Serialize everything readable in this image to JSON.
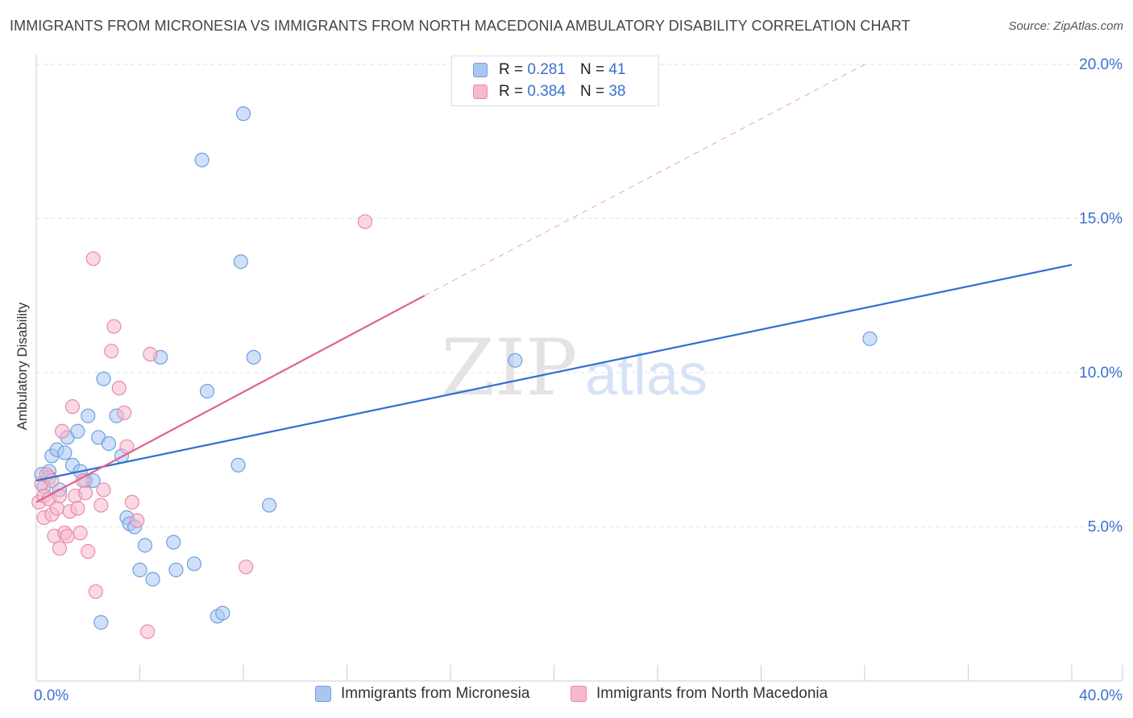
{
  "header": {
    "title": "IMMIGRANTS FROM MICRONESIA VS IMMIGRANTS FROM NORTH MACEDONIA AMBULATORY DISABILITY CORRELATION CHART",
    "source": "Source: ZipAtlas.com"
  },
  "watermark": {
    "zip": "ZIP",
    "atlas": "atlas"
  },
  "legend": {
    "items": [
      {
        "r_label": "R =",
        "r_value": "0.281",
        "n_label": "N =",
        "n_value": "41",
        "color": "#a9c6f2"
      },
      {
        "r_label": "R =",
        "r_value": "0.384",
        "n_label": "N =",
        "n_value": "38",
        "color": "#f6b8cc"
      }
    ]
  },
  "colors": {
    "blue_fill": "#a9c6f2",
    "blue_stroke": "#6f9ee0",
    "blue_line": "#2f6fd0",
    "pink_fill": "#f6b8cc",
    "pink_stroke": "#e98aa9",
    "pink_line": "#e0628f",
    "tick_label": "#3b6fd1",
    "grid": "#e2e2e2"
  },
  "chart_data": {
    "type": "scatter",
    "title": "IMMIGRANTS FROM MICRONESIA VS IMMIGRANTS FROM NORTH MACEDONIA AMBULATORY DISABILITY CORRELATION CHART",
    "xlabel": "",
    "ylabel": "Ambulatory Disability",
    "xlim": [
      0,
      40
    ],
    "ylim": [
      0,
      20
    ],
    "x_tick_labels": [
      "0.0%",
      "40.0%"
    ],
    "y_ticks": [
      5,
      10,
      15,
      20
    ],
    "y_tick_labels": [
      "5.0%",
      "10.0%",
      "15.0%",
      "20.0%"
    ],
    "grid": true,
    "legend_position": "top-center",
    "series": [
      {
        "name": "Immigrants from Micronesia",
        "color": "#a9c6f2",
        "points": [
          {
            "x": 0.2,
            "y": 6.7
          },
          {
            "x": 0.3,
            "y": 6.3
          },
          {
            "x": 0.5,
            "y": 6.8
          },
          {
            "x": 0.5,
            "y": 6.6
          },
          {
            "x": 0.6,
            "y": 7.3
          },
          {
            "x": 0.8,
            "y": 7.5
          },
          {
            "x": 0.9,
            "y": 6.2
          },
          {
            "x": 1.1,
            "y": 7.4
          },
          {
            "x": 1.2,
            "y": 7.9
          },
          {
            "x": 1.4,
            "y": 7.0
          },
          {
            "x": 1.6,
            "y": 8.1
          },
          {
            "x": 1.7,
            "y": 6.8
          },
          {
            "x": 1.9,
            "y": 6.5
          },
          {
            "x": 2.0,
            "y": 8.6
          },
          {
            "x": 2.2,
            "y": 6.5
          },
          {
            "x": 2.4,
            "y": 7.9
          },
          {
            "x": 2.6,
            "y": 9.8
          },
          {
            "x": 2.8,
            "y": 7.7
          },
          {
            "x": 3.1,
            "y": 8.6
          },
          {
            "x": 3.3,
            "y": 7.3
          },
          {
            "x": 3.5,
            "y": 5.3
          },
          {
            "x": 3.6,
            "y": 5.1
          },
          {
            "x": 3.8,
            "y": 5.0
          },
          {
            "x": 4.0,
            "y": 3.6
          },
          {
            "x": 4.2,
            "y": 4.4
          },
          {
            "x": 4.5,
            "y": 3.3
          },
          {
            "x": 4.8,
            "y": 10.5
          },
          {
            "x": 5.3,
            "y": 4.5
          },
          {
            "x": 5.4,
            "y": 3.6
          },
          {
            "x": 6.1,
            "y": 3.8
          },
          {
            "x": 6.4,
            "y": 16.9
          },
          {
            "x": 6.6,
            "y": 9.4
          },
          {
            "x": 7.0,
            "y": 2.1
          },
          {
            "x": 7.2,
            "y": 2.2
          },
          {
            "x": 7.8,
            "y": 7.0
          },
          {
            "x": 7.9,
            "y": 13.6
          },
          {
            "x": 8.0,
            "y": 18.4
          },
          {
            "x": 8.4,
            "y": 10.5
          },
          {
            "x": 9.0,
            "y": 5.7
          },
          {
            "x": 2.5,
            "y": 1.9
          },
          {
            "x": 18.5,
            "y": 10.4
          },
          {
            "x": 32.2,
            "y": 11.1
          }
        ]
      },
      {
        "name": "Immigrants from North Macedonia",
        "color": "#f6b8cc",
        "points": [
          {
            "x": 0.1,
            "y": 5.8
          },
          {
            "x": 0.2,
            "y": 6.4
          },
          {
            "x": 0.3,
            "y": 6.0
          },
          {
            "x": 0.3,
            "y": 5.3
          },
          {
            "x": 0.4,
            "y": 6.7
          },
          {
            "x": 0.5,
            "y": 5.9
          },
          {
            "x": 0.6,
            "y": 5.4
          },
          {
            "x": 0.6,
            "y": 6.5
          },
          {
            "x": 0.7,
            "y": 4.7
          },
          {
            "x": 0.8,
            "y": 5.6
          },
          {
            "x": 0.9,
            "y": 4.3
          },
          {
            "x": 0.9,
            "y": 6.0
          },
          {
            "x": 1.0,
            "y": 8.1
          },
          {
            "x": 1.1,
            "y": 4.8
          },
          {
            "x": 1.2,
            "y": 4.7
          },
          {
            "x": 1.3,
            "y": 5.5
          },
          {
            "x": 1.4,
            "y": 8.9
          },
          {
            "x": 1.5,
            "y": 6.0
          },
          {
            "x": 1.6,
            "y": 5.6
          },
          {
            "x": 1.7,
            "y": 4.8
          },
          {
            "x": 1.8,
            "y": 6.5
          },
          {
            "x": 1.9,
            "y": 6.1
          },
          {
            "x": 2.0,
            "y": 4.2
          },
          {
            "x": 2.2,
            "y": 13.7
          },
          {
            "x": 2.3,
            "y": 2.9
          },
          {
            "x": 2.5,
            "y": 5.7
          },
          {
            "x": 2.6,
            "y": 6.2
          },
          {
            "x": 2.9,
            "y": 10.7
          },
          {
            "x": 3.0,
            "y": 11.5
          },
          {
            "x": 3.2,
            "y": 9.5
          },
          {
            "x": 3.4,
            "y": 8.7
          },
          {
            "x": 3.5,
            "y": 7.6
          },
          {
            "x": 3.7,
            "y": 5.8
          },
          {
            "x": 4.3,
            "y": 1.6
          },
          {
            "x": 4.4,
            "y": 10.6
          },
          {
            "x": 8.1,
            "y": 3.7
          },
          {
            "x": 12.7,
            "y": 14.9
          },
          {
            "x": 3.9,
            "y": 5.2
          }
        ]
      }
    ],
    "trend_lines": [
      {
        "series": "Immigrants from Micronesia",
        "x": [
          0,
          40
        ],
        "y": [
          6.5,
          13.5
        ],
        "style": "solid"
      },
      {
        "series": "Immigrants from North Macedonia",
        "x": [
          0,
          15
        ],
        "y": [
          5.8,
          12.5
        ],
        "style": "solid"
      },
      {
        "series": "Immigrants from North Macedonia",
        "x": [
          15,
          32
        ],
        "y": [
          12.5,
          20.0
        ],
        "style": "dashed"
      }
    ]
  }
}
